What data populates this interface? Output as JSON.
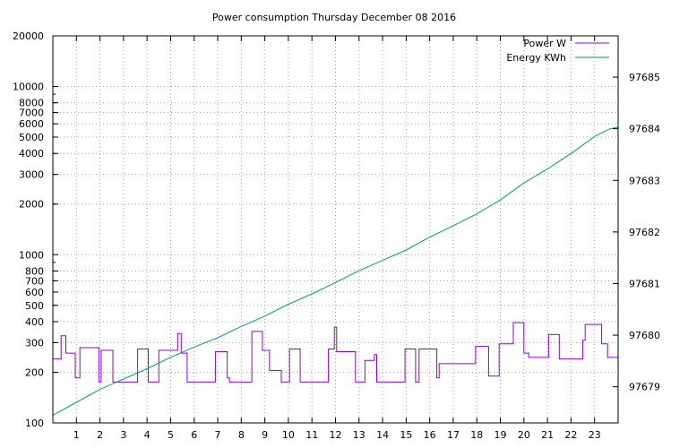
{
  "chart_data": {
    "type": "line",
    "title": "Power consumption Thursday December 08 2016",
    "x_ticks": [
      "1",
      "2",
      "3",
      "4",
      "5",
      "6",
      "7",
      "8",
      "9",
      "10",
      "11",
      "12",
      "13",
      "14",
      "15",
      "16",
      "17",
      "18",
      "19",
      "20",
      "21",
      "22",
      "23"
    ],
    "xlim": [
      0,
      24
    ],
    "y_left": {
      "scale": "log",
      "range": [
        100,
        20000
      ],
      "ticks": [
        "100",
        "200",
        "300",
        "400",
        "500",
        "600",
        "700",
        "800",
        "1000",
        "2000",
        "3000",
        "4000",
        "5000",
        "6000",
        "7000",
        "8000",
        "10000",
        "20000"
      ]
    },
    "y_right": {
      "scale": "linear",
      "range": [
        97678.3,
        97685.8
      ],
      "ticks": [
        "97679",
        "97680",
        "97681",
        "97682",
        "97683",
        "97684",
        "97685"
      ]
    },
    "grid": true,
    "legend_position": "top-right",
    "series": [
      {
        "name": "Power W",
        "axis": "left",
        "color": "#9400d3",
        "points": [
          [
            0.0,
            240
          ],
          [
            0.35,
            240
          ],
          [
            0.35,
            330
          ],
          [
            0.55,
            330
          ],
          [
            0.55,
            260
          ],
          [
            0.95,
            260
          ],
          [
            0.95,
            185
          ],
          [
            1.15,
            185
          ],
          [
            1.15,
            280
          ],
          [
            1.95,
            280
          ],
          [
            1.95,
            175
          ],
          [
            2.05,
            175
          ],
          [
            2.05,
            270
          ],
          [
            2.55,
            270
          ],
          [
            2.55,
            175
          ],
          [
            3.6,
            175
          ],
          [
            3.6,
            275
          ],
          [
            4.05,
            275
          ],
          [
            4.05,
            175
          ],
          [
            4.5,
            175
          ],
          [
            4.5,
            270
          ],
          [
            5.3,
            270
          ],
          [
            5.3,
            340
          ],
          [
            5.45,
            340
          ],
          [
            5.45,
            260
          ],
          [
            5.7,
            260
          ],
          [
            5.7,
            175
          ],
          [
            6.9,
            175
          ],
          [
            6.9,
            265
          ],
          [
            7.4,
            265
          ],
          [
            7.4,
            185
          ],
          [
            7.5,
            185
          ],
          [
            7.5,
            175
          ],
          [
            8.45,
            175
          ],
          [
            8.45,
            350
          ],
          [
            8.9,
            350
          ],
          [
            8.9,
            270
          ],
          [
            9.2,
            270
          ],
          [
            9.2,
            205
          ],
          [
            9.7,
            205
          ],
          [
            9.7,
            175
          ],
          [
            10.05,
            175
          ],
          [
            10.05,
            275
          ],
          [
            10.5,
            275
          ],
          [
            10.5,
            175
          ],
          [
            11.7,
            175
          ],
          [
            11.7,
            275
          ],
          [
            11.95,
            275
          ],
          [
            11.95,
            370
          ],
          [
            12.05,
            370
          ],
          [
            12.05,
            265
          ],
          [
            12.85,
            265
          ],
          [
            12.85,
            175
          ],
          [
            13.25,
            175
          ],
          [
            13.25,
            235
          ],
          [
            13.65,
            235
          ],
          [
            13.65,
            255
          ],
          [
            13.75,
            255
          ],
          [
            13.75,
            175
          ],
          [
            14.95,
            175
          ],
          [
            14.95,
            275
          ],
          [
            15.4,
            275
          ],
          [
            15.4,
            175
          ],
          [
            15.55,
            175
          ],
          [
            15.55,
            275
          ],
          [
            16.3,
            275
          ],
          [
            16.3,
            185
          ],
          [
            16.4,
            185
          ],
          [
            16.4,
            225
          ],
          [
            17.95,
            225
          ],
          [
            17.95,
            285
          ],
          [
            18.5,
            285
          ],
          [
            18.5,
            190
          ],
          [
            18.95,
            190
          ],
          [
            18.95,
            295
          ],
          [
            19.55,
            295
          ],
          [
            19.55,
            395
          ],
          [
            20.0,
            395
          ],
          [
            20.0,
            260
          ],
          [
            20.2,
            260
          ],
          [
            20.2,
            245
          ],
          [
            21.05,
            245
          ],
          [
            21.05,
            335
          ],
          [
            21.5,
            335
          ],
          [
            21.5,
            240
          ],
          [
            22.5,
            240
          ],
          [
            22.5,
            310
          ],
          [
            22.6,
            310
          ],
          [
            22.6,
            385
          ],
          [
            23.3,
            385
          ],
          [
            23.3,
            295
          ],
          [
            23.55,
            295
          ],
          [
            23.55,
            245
          ],
          [
            24.0,
            245
          ]
        ]
      },
      {
        "name": "Energy KWh",
        "axis": "right",
        "color": "#009e73",
        "points": [
          [
            0,
            97678.45
          ],
          [
            1,
            97678.7
          ],
          [
            2,
            97678.95
          ],
          [
            3,
            97679.15
          ],
          [
            4,
            97679.35
          ],
          [
            5,
            97679.57
          ],
          [
            6,
            97679.77
          ],
          [
            7,
            97679.95
          ],
          [
            8,
            97680.17
          ],
          [
            9,
            97680.37
          ],
          [
            10,
            97680.6
          ],
          [
            11,
            97680.8
          ],
          [
            12,
            97681.02
          ],
          [
            13,
            97681.25
          ],
          [
            14,
            97681.45
          ],
          [
            15,
            97681.65
          ],
          [
            16,
            97681.9
          ],
          [
            17,
            97682.12
          ],
          [
            18,
            97682.35
          ],
          [
            19,
            97682.62
          ],
          [
            20,
            97682.95
          ],
          [
            21,
            97683.22
          ],
          [
            22,
            97683.52
          ],
          [
            23,
            97683.85
          ],
          [
            23.65,
            97684.0
          ],
          [
            24,
            97684.03
          ]
        ]
      }
    ]
  }
}
